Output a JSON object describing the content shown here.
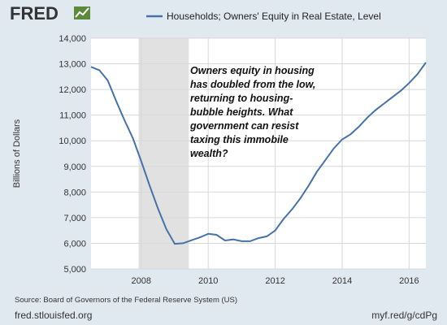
{
  "logo": {
    "text": "FRED",
    "icon": "fred-line-chart-icon"
  },
  "chart_data": {
    "type": "line",
    "title": "",
    "xlabel": "",
    "ylabel": "Billions of Dollars",
    "ylim": [
      5000,
      14000
    ],
    "yticks": [
      5000,
      6000,
      7000,
      8000,
      9000,
      10000,
      11000,
      12000,
      13000,
      14000
    ],
    "ytick_labels": [
      "5,000",
      "6,000",
      "7,000",
      "8,000",
      "9,000",
      "10,000",
      "11,000",
      "12,000",
      "13,000",
      "14,000"
    ],
    "xlim": [
      2006.5,
      2016.5
    ],
    "xticks": [
      2008,
      2010,
      2012,
      2014,
      2016
    ],
    "xtick_labels": [
      "2008",
      "2010",
      "2012",
      "2014",
      "2016"
    ],
    "grid": true,
    "legend": "top",
    "recession_shading": [
      {
        "start": 2007.92,
        "end": 2009.42
      }
    ],
    "annotation": [
      "Owners equity in housing",
      "has doubled from the low,",
      "returning to housing-",
      "bubble heights. What",
      "government can resist",
      "taxing this immobile",
      "wealth?"
    ],
    "series": [
      {
        "name": "Households; Owners' Equity in Real Estate, Level",
        "color": "#4572a7",
        "x": [
          2006.5,
          2006.75,
          2007.0,
          2007.25,
          2007.5,
          2007.75,
          2008.0,
          2008.25,
          2008.5,
          2008.75,
          2009.0,
          2009.25,
          2009.5,
          2009.75,
          2010.0,
          2010.25,
          2010.5,
          2010.75,
          2011.0,
          2011.25,
          2011.5,
          2011.75,
          2012.0,
          2012.25,
          2012.5,
          2012.75,
          2013.0,
          2013.25,
          2013.5,
          2013.75,
          2014.0,
          2014.25,
          2014.5,
          2014.75,
          2015.0,
          2015.25,
          2015.5,
          2015.75,
          2016.0,
          2016.25,
          2016.5
        ],
        "y": [
          12880,
          12750,
          12350,
          11550,
          10800,
          10100,
          9200,
          8250,
          7350,
          6550,
          5980,
          6000,
          6120,
          6230,
          6370,
          6330,
          6110,
          6150,
          6080,
          6080,
          6200,
          6270,
          6500,
          6950,
          7320,
          7750,
          8250,
          8800,
          9250,
          9700,
          10050,
          10250,
          10550,
          10900,
          11200,
          11450,
          11700,
          11950,
          12250,
          12600,
          13050
        ]
      }
    ]
  },
  "footer": {
    "source": "Source: Board of Governors of the Federal Reserve System (US)",
    "site": "fred.stlouisfed.org",
    "short_url": "myf.red/g/cdPg"
  }
}
